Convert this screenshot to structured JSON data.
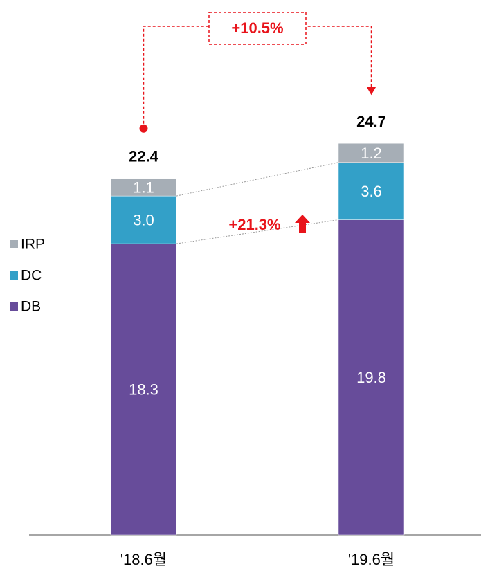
{
  "chart_data": {
    "type": "stacked_bar",
    "categories": [
      "'18.6월",
      "'19.6월"
    ],
    "series": [
      {
        "name": "DB",
        "color": "#674c9a",
        "values": [
          18.3,
          19.8
        ]
      },
      {
        "name": "DC",
        "color": "#33a0c8",
        "values": [
          3.0,
          3.6
        ],
        "value_labels": [
          "3.0",
          "3.6"
        ]
      },
      {
        "name": "IRP",
        "color": "#a6aeb6",
        "values": [
          1.1,
          1.2
        ]
      }
    ],
    "totals": [
      22.4,
      24.7
    ],
    "annotations": {
      "total_growth": "+10.5%",
      "dc_growth": "+21.3%"
    },
    "annotation_color": "#e8141b"
  }
}
